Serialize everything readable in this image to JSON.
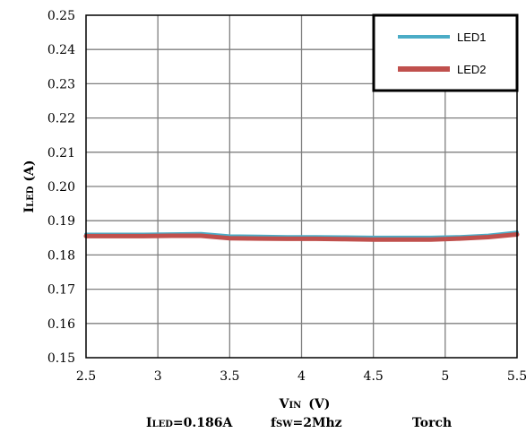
{
  "chart_data": {
    "type": "line",
    "xlabel_main": "V",
    "xlabel_sub": "IN",
    "xlabel_unit": "(V)",
    "ylabel_main": "I",
    "ylabel_sub": "LED",
    "ylabel_unit": "(A)",
    "xlim": [
      2.5,
      5.5
    ],
    "ylim": [
      0.15,
      0.25
    ],
    "xticks": [
      "2.5",
      "3",
      "3.5",
      "4",
      "4.5",
      "5",
      "5.5"
    ],
    "yticks": [
      "0.15",
      "0.16",
      "0.17",
      "0.18",
      "0.19",
      "0.20",
      "0.21",
      "0.22",
      "0.23",
      "0.24",
      "0.25"
    ],
    "grid": true,
    "legend_position": "top-right",
    "series": [
      {
        "name": "LED1",
        "color": "#4bacc6",
        "x": [
          2.5,
          2.7,
          2.9,
          3.1,
          3.3,
          3.5,
          3.7,
          3.9,
          4.1,
          4.3,
          4.5,
          4.7,
          4.9,
          5.1,
          5.3,
          5.5
        ],
        "values": [
          0.186,
          0.186,
          0.186,
          0.1861,
          0.1862,
          0.1855,
          0.1854,
          0.1853,
          0.1853,
          0.1852,
          0.1851,
          0.1851,
          0.1851,
          0.1853,
          0.1857,
          0.1866
        ]
      },
      {
        "name": "LED2",
        "color": "#c0504d",
        "x": [
          2.5,
          2.7,
          2.9,
          3.1,
          3.3,
          3.5,
          3.7,
          3.9,
          4.1,
          4.3,
          4.5,
          4.7,
          4.9,
          5.1,
          5.3,
          5.5
        ],
        "values": [
          0.1855,
          0.1855,
          0.1855,
          0.1856,
          0.1856,
          0.1849,
          0.1848,
          0.1847,
          0.1847,
          0.1846,
          0.1845,
          0.1845,
          0.1845,
          0.1848,
          0.1852,
          0.186
        ]
      }
    ]
  },
  "caption": {
    "iled_main": "I",
    "iled_sub": "LED",
    "iled_value": "=0.186A",
    "fsw_main": "f",
    "fsw_sub": "SW",
    "fsw_value": "=2Mhz",
    "mode": "Torch"
  }
}
